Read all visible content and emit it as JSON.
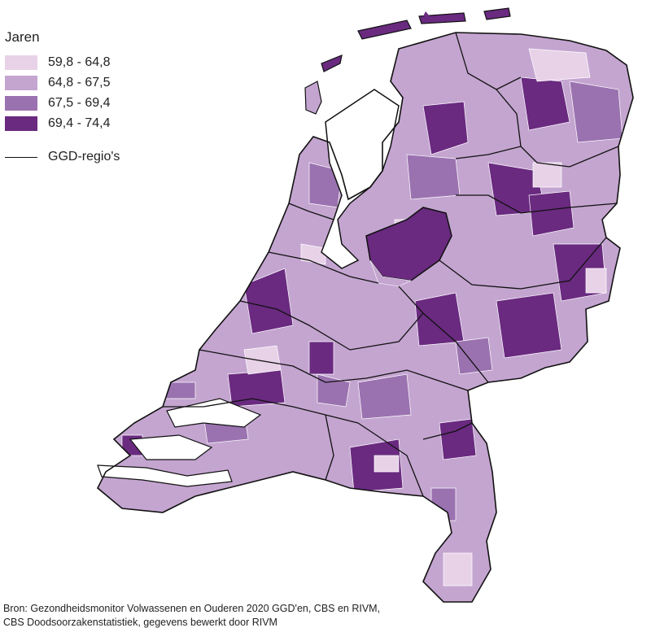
{
  "legend": {
    "title": "Jaren",
    "classes": [
      {
        "label": "59,8 - 64,8",
        "color": "#e8d2e8"
      },
      {
        "label": "64,8 - 67,5",
        "color": "#c4a5d0"
      },
      {
        "label": "67,5 - 69,4",
        "color": "#9b72b0"
      },
      {
        "label": "69,4 - 74,4",
        "color": "#6a2a80"
      }
    ],
    "boundary_label": "GGD-regio's"
  },
  "source": {
    "line1": "Bron: Gezondheidsmonitor Volwassenen en Ouderen 2020 GGD'en, CBS en RIVM,",
    "line2": "CBS Doodsoorzakenstatistiek, gegevens bewerkt door RIVM"
  }
}
